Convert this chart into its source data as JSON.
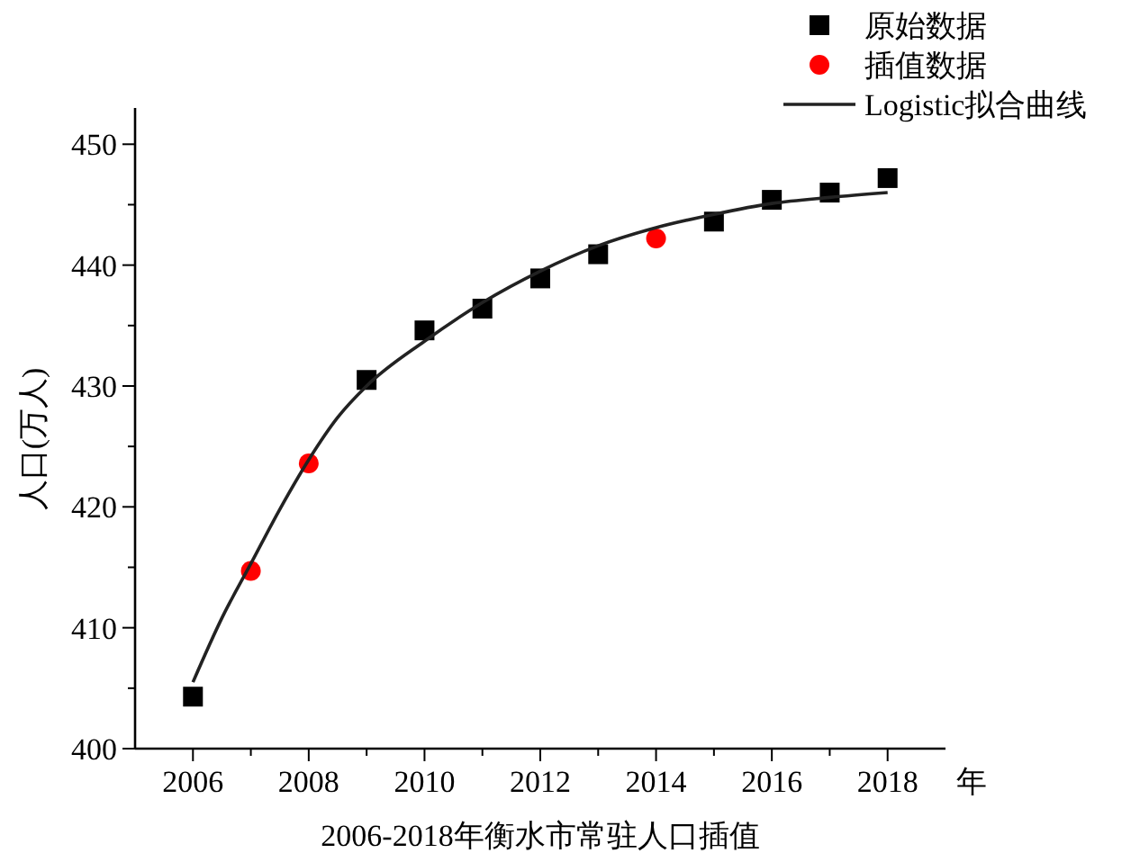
{
  "chart_data": {
    "type": "scatter",
    "title": "2006-2018年衡水市常驻人口插值",
    "xlabel": "年",
    "ylabel": "人口(万人)",
    "xlim": [
      2005,
      2019
    ],
    "xticks": [
      2006,
      {
        "value": 2007,
        "label": null
      },
      2008,
      {
        "value": 2009,
        "label": null
      },
      2010,
      {
        "value": 2011,
        "label": null
      },
      2012,
      {
        "value": 2013,
        "label": null
      },
      2014,
      {
        "value": 2015,
        "label": null
      },
      2016,
      {
        "value": 2017,
        "label": null
      },
      2018
    ],
    "ylim": [
      400,
      453
    ],
    "yticks": [
      400,
      {
        "value": 405,
        "label": null
      },
      410,
      {
        "value": 415,
        "label": null
      },
      420,
      {
        "value": 425,
        "label": null
      },
      430,
      {
        "value": 435,
        "label": null
      },
      440,
      {
        "value": 445,
        "label": null
      },
      450
    ],
    "legend": "top right",
    "grid": false,
    "series": [
      {
        "name": "原始数据",
        "marker": "square",
        "color": "#000000",
        "x": [
          2006,
          2009,
          2010,
          2011,
          2012,
          2013,
          2015,
          2016,
          2017,
          2018
        ],
        "values": [
          404.3,
          430.5,
          434.6,
          436.4,
          438.9,
          440.9,
          443.6,
          445.4,
          446.0,
          447.2
        ]
      },
      {
        "name": "插值数据",
        "marker": "circle",
        "color": "#ff0000",
        "x": [
          2007,
          2008,
          2014
        ],
        "values": [
          414.7,
          423.6,
          442.2
        ]
      },
      {
        "name": "Logistic拟合曲线",
        "type": "line",
        "marker": "none",
        "line_style": "solid",
        "color": "#222222",
        "x": [
          2006,
          2006.5,
          2007,
          2007.5,
          2008,
          2008.5,
          2009,
          2010,
          2011,
          2012,
          2013,
          2014,
          2015,
          2016,
          2017,
          2018
        ],
        "values": [
          405.5,
          410.8,
          415.3,
          419.8,
          423.9,
          427.4,
          430.0,
          433.7,
          436.9,
          439.5,
          441.6,
          443.1,
          444.2,
          445.1,
          445.6,
          446.0
        ]
      }
    ]
  }
}
